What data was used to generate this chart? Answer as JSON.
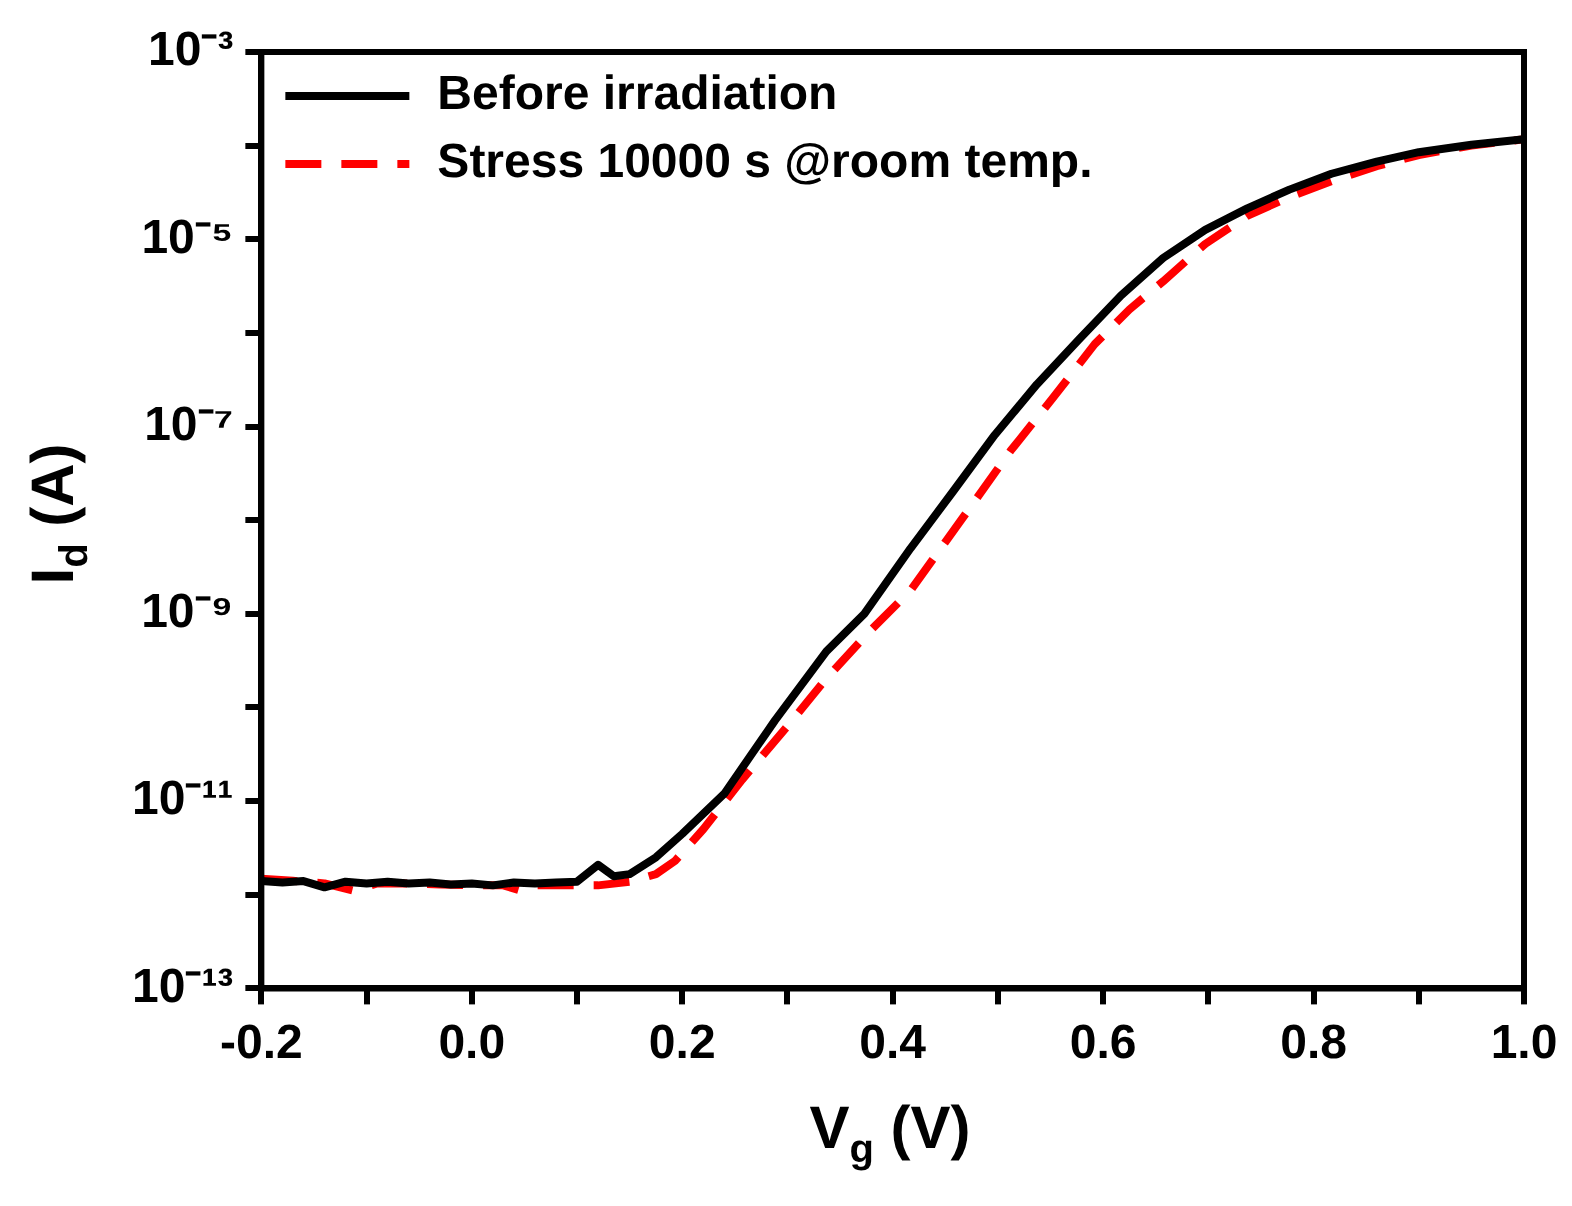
{
  "chart_data": {
    "type": "line",
    "xlabel": "V$_{g}$ (V)",
    "ylabel": "I$_{d}$ (A)",
    "log": "y",
    "grid": false,
    "legend": "top left",
    "marker": "none",
    "xlim": [
      -0.2,
      1.0
    ],
    "ylim": [
      1e-13,
      0.001
    ],
    "xticks": [
      -0.2,
      {
        "value": -0.1,
        "label": null
      },
      {
        "value": 0,
        "label": "0.0"
      },
      {
        "value": 0.1,
        "label": null
      },
      0.2,
      {
        "value": 0.3,
        "label": null
      },
      0.4,
      {
        "value": 0.5,
        "label": null
      },
      0.6,
      {
        "value": 0.7,
        "label": null
      },
      0.8,
      {
        "value": 0.9,
        "label": null
      },
      {
        "value": 1.0,
        "label": "1.0"
      }
    ],
    "yticks": [
      {
        "value": 1e-13,
        "label": "10⁻¹³"
      },
      {
        "value": 1e-12,
        "label": null
      },
      {
        "value": 1e-11,
        "label": "10⁻¹¹"
      },
      {
        "value": 1e-10,
        "label": null
      },
      {
        "value": 1e-09,
        "label": "10⁻⁹"
      },
      {
        "value": 1e-08,
        "label": null
      },
      {
        "value": 1e-07,
        "label": "10⁻⁷"
      },
      {
        "value": 1e-06,
        "label": null
      },
      {
        "value": 1e-05,
        "label": "10⁻⁵"
      },
      {
        "value": 0.0001,
        "label": null
      },
      {
        "value": 0.001,
        "label": "10⁻³"
      }
    ],
    "series": [
      {
        "name": "Before irradiation",
        "color": "#000000",
        "line_style": "solid",
        "x": [
          -0.2,
          -0.18,
          -0.16,
          -0.14,
          -0.12,
          -0.1,
          -0.08,
          -0.06,
          -0.04,
          -0.02,
          0,
          0.02,
          0.04,
          0.06,
          0.08,
          0.1,
          0.12,
          0.135,
          0.15,
          0.175,
          0.2,
          0.24,
          0.288,
          0.337,
          0.373,
          0.417,
          0.457,
          0.497,
          0.537,
          0.577,
          0.617,
          0.657,
          0.697,
          0.737,
          0.777,
          0.817,
          0.86,
          0.9,
          0.95,
          1.0
        ],
        "values": [
          1.4e-12,
          1.35e-12,
          1.4e-12,
          1.2e-12,
          1.38e-12,
          1.32e-12,
          1.38e-12,
          1.32e-12,
          1.35e-12,
          1.29e-12,
          1.32e-12,
          1.26e-12,
          1.35e-12,
          1.32e-12,
          1.35e-12,
          1.38e-12,
          2.09e-12,
          1.58e-12,
          1.66e-12,
          2.51e-12,
          4.47e-12,
          1.2e-11,
          7.24e-11,
          3.98e-10,
          1e-09,
          5.01e-09,
          2e-08,
          8.13e-08,
          2.82e-07,
          8.51e-07,
          2.51e-06,
          6.31e-06,
          1.26e-05,
          2.14e-05,
          3.39e-05,
          5.01e-05,
          6.76e-05,
          8.51e-05,
          0.000102,
          0.000117
        ]
      },
      {
        "name": "Stress 10000 s @room temp.",
        "color": "#ff0000",
        "line_style": "dashed",
        "x": [
          -0.2,
          -0.17,
          -0.14,
          -0.112,
          -0.09,
          -0.06,
          -0.03,
          0,
          0.03,
          0.045,
          0.06,
          0.09,
          0.12,
          0.15,
          0.175,
          0.193,
          0.22,
          0.257,
          0.3,
          0.337,
          0.377,
          0.417,
          0.465,
          0.512,
          0.552,
          0.592,
          0.625,
          0.657,
          0.697,
          0.737,
          0.777,
          0.817,
          0.86,
          0.9,
          0.95,
          1.0
        ],
        "values": [
          1.48e-12,
          1.41e-12,
          1.32e-12,
          1.1e-12,
          1.32e-12,
          1.32e-12,
          1.29e-12,
          1.26e-12,
          1.26e-12,
          1.12e-12,
          1.26e-12,
          1.26e-12,
          1.26e-12,
          1.38e-12,
          1.66e-12,
          2.29e-12,
          5.01e-12,
          1.7e-11,
          6.31e-11,
          2.04e-10,
          6.31e-10,
          1.78e-09,
          1e-08,
          5.5e-08,
          2e-07,
          7.59e-07,
          1.78e-06,
          3.55e-06,
          8.91e-06,
          1.78e-05,
          2.82e-05,
          4.17e-05,
          6.03e-05,
          7.94e-05,
          0.0001,
          0.000117
        ]
      }
    ]
  }
}
